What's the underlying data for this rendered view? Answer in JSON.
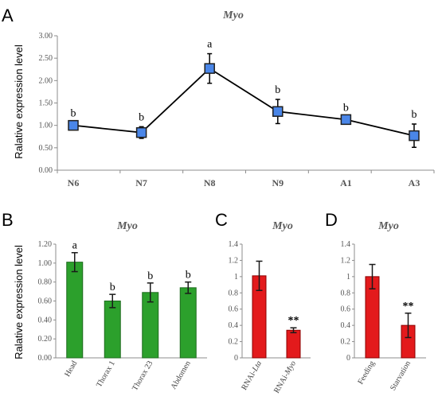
{
  "chart_data": [
    {
      "panel": "A",
      "type": "line",
      "title": "Myo",
      "ylabel": "Ralative expression level",
      "categories": [
        "N6",
        "N7",
        "N8",
        "N9",
        "A1",
        "A3"
      ],
      "values": [
        1.0,
        0.84,
        2.27,
        1.31,
        1.13,
        0.77
      ],
      "errors": [
        0.06,
        0.13,
        0.33,
        0.27,
        0.05,
        0.26
      ],
      "annotations": [
        "b",
        "b",
        "a",
        "b",
        "b",
        "b"
      ],
      "ylim": [
        0,
        3
      ],
      "yticks": [
        "0.00",
        "0.50",
        "1.00",
        "1.50",
        "2.00",
        "2.50",
        "3.00"
      ],
      "colors": {
        "marker": "#4a86e8",
        "marker_edge": "#1f1f1f",
        "line": "#000000"
      }
    },
    {
      "panel": "B",
      "type": "bar",
      "title": "Myo",
      "ylabel": "Ralative expression level",
      "categories": [
        "Head",
        "Thorax 1",
        "Thorax 23",
        "Abdomen"
      ],
      "values": [
        1.01,
        0.6,
        0.69,
        0.74
      ],
      "errors": [
        0.1,
        0.07,
        0.1,
        0.06
      ],
      "annotations": [
        "a",
        "b",
        "b",
        "b"
      ],
      "ylim": [
        0,
        1.2
      ],
      "yticks": [
        "0.00",
        "0.20",
        "0.40",
        "0.60",
        "0.80",
        "1.00",
        "1.20"
      ],
      "colors": {
        "bar": "#2ca02c",
        "bar_edge": "#1e6b1e"
      }
    },
    {
      "panel": "C",
      "type": "bar",
      "title": "Myo",
      "categories": [
        "RNAi-Lta",
        "RNAi-Myo"
      ],
      "category_italic_parts": [
        "Lta",
        "Myo"
      ],
      "values": [
        1.01,
        0.34
      ],
      "errors": [
        0.18,
        0.03
      ],
      "annotations": [
        "",
        "**"
      ],
      "ylim": [
        0,
        1.4
      ],
      "yticks": [
        "0",
        "0.2",
        "0.4",
        "0.6",
        "0.8",
        "1",
        "1.2",
        "1.4"
      ],
      "colors": {
        "bar": "#e31a1c",
        "bar_edge": "#8b0000"
      }
    },
    {
      "panel": "D",
      "type": "bar",
      "title": "Myo",
      "categories": [
        "Feeding",
        "Starvation"
      ],
      "values": [
        1.0,
        0.4
      ],
      "errors": [
        0.15,
        0.15
      ],
      "annotations": [
        "",
        "**"
      ],
      "ylim": [
        0,
        1.4
      ],
      "yticks": [
        "0",
        "0.2",
        "0.4",
        "0.6",
        "0.8",
        "1",
        "1.2",
        "1.4"
      ],
      "colors": {
        "bar": "#e31a1c",
        "bar_edge": "#8b0000"
      }
    }
  ],
  "panel_labels": [
    "A",
    "B",
    "C",
    "D"
  ]
}
